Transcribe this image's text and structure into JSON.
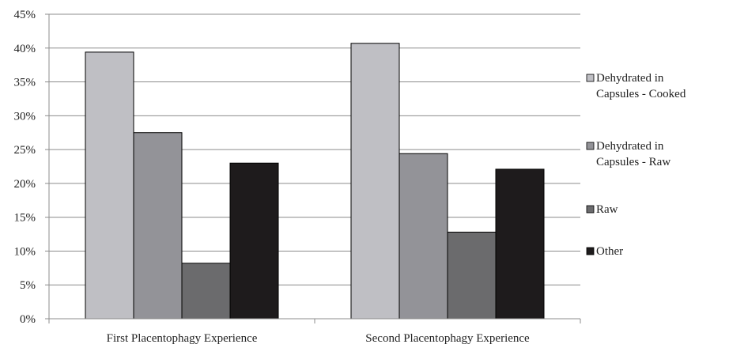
{
  "chart_data": {
    "type": "bar",
    "title": "",
    "xlabel": "",
    "ylabel": "",
    "categories": [
      "First Placentophagy Experience",
      "Second Placentophagy Experience"
    ],
    "series": [
      {
        "name": "Dehydrated in Capsules - Cooked",
        "name_lines": [
          "Dehydrated in",
          "Capsules - Cooked"
        ],
        "color": "#bfbfc4",
        "values": [
          39.4,
          40.7
        ]
      },
      {
        "name": "Dehydrated in Capsules - Raw",
        "name_lines": [
          "Dehydrated in",
          "Capsules - Raw"
        ],
        "color": "#939398",
        "values": [
          27.5,
          24.4
        ]
      },
      {
        "name": "Raw",
        "name_lines": [
          "Raw"
        ],
        "color": "#6b6b6d",
        "values": [
          8.2,
          12.8
        ]
      },
      {
        "name": "Other",
        "name_lines": [
          "Other"
        ],
        "color": "#1e1b1c",
        "values": [
          23.0,
          22.1
        ]
      }
    ],
    "ylim": [
      0,
      45
    ],
    "yticks": [
      "0%",
      "5%",
      "10%",
      "15%",
      "20%",
      "25%",
      "30%",
      "35%",
      "40%",
      "45%"
    ],
    "grid": true,
    "legend": "right"
  }
}
